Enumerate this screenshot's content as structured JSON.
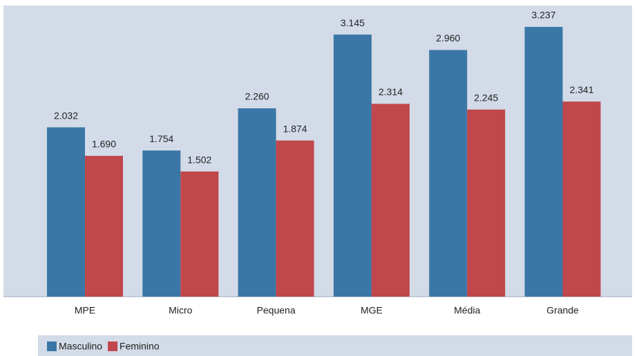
{
  "chart_data": {
    "type": "bar",
    "categories": [
      "MPE",
      "Micro",
      "Pequena",
      "MGE",
      "Média",
      "Grande"
    ],
    "series": [
      {
        "name": "Masculino",
        "color": "#3a77a6",
        "values": [
          2032,
          1754,
          2260,
          3145,
          2960,
          3237
        ],
        "value_labels": [
          "2.032",
          "1.754",
          "2.260",
          "3.145",
          "2.960",
          "3.237"
        ]
      },
      {
        "name": "Feminino",
        "color": "#c0474b",
        "values": [
          1690,
          1502,
          1874,
          2314,
          2245,
          2341
        ],
        "value_labels": [
          "1.690",
          "1.502",
          "1.874",
          "2.314",
          "2.245",
          "2.341"
        ]
      }
    ],
    "legend": "bottom-left"
  }
}
